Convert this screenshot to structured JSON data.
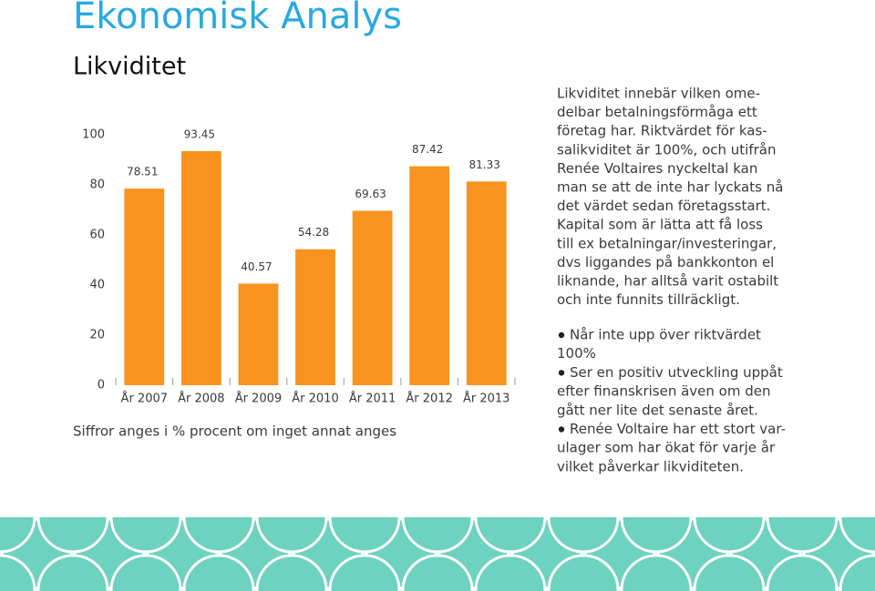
{
  "header": {
    "title": "Ekonomisk Analys",
    "subtitle": "Likviditet"
  },
  "chart_data": {
    "type": "bar",
    "categories": [
      "År 2007",
      "År 2008",
      "År 2009",
      "År 2010",
      "År 2011",
      "År 2012",
      "År 2013"
    ],
    "values": [
      78.51,
      93.45,
      40.57,
      54.28,
      69.63,
      87.42,
      81.33
    ],
    "color": "#f7931e",
    "ylim": [
      0,
      100
    ],
    "yticks": [
      0,
      20,
      40,
      60,
      80,
      100
    ],
    "grid": false
  },
  "note": "Siffror anges i % procent om inget annat anges",
  "paragraph": [
    "Likviditet innebär vilken ome-",
    "delbar betalningsförmåga ett",
    "företag har. Riktvärdet för kas-",
    "salikviditet är 100%, och utifrån",
    "Renée Voltaires nyckeltal kan",
    "man se att de inte har lyckats nå",
    "det värdet sedan företagsstart.",
    "Kapital som är lätta att få loss",
    "till ex betalningar/investeringar,",
    "dvs liggandes på bankkonton el",
    "liknande, har alltså varit ostabilt",
    "och inte funnits tillräckligt."
  ],
  "bullets": [
    [
      "Når inte upp över riktvärdet",
      "100%"
    ],
    [
      "Ser en positiv utveckling uppåt",
      "efter finanskrisen även om den",
      "gått ner lite det senaste året."
    ],
    [
      "Renée Voltaire har ett stort var-",
      "ulager som har ökat för varje år",
      "vilket påverkar likviditeten."
    ]
  ]
}
